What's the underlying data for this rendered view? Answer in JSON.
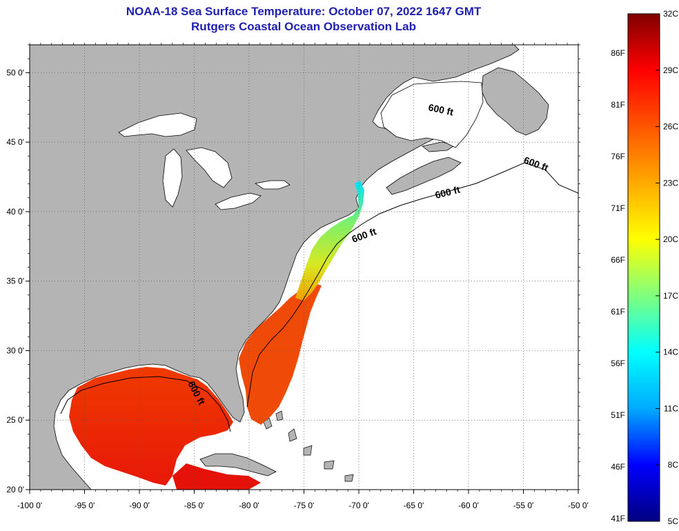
{
  "header": {
    "title": "NOAA-18 Sea Surface Temperature:  October 07, 2022 1647 GMT",
    "subtitle": "Rutgers Coastal Ocean Observation Lab"
  },
  "map": {
    "lon_range": [
      -100,
      -50
    ],
    "lat_range": [
      20,
      52
    ],
    "lon_ticks": [
      "-100 0'",
      "-95 0'",
      "-90 0'",
      "-85 0'",
      "-80 0'",
      "-75 0'",
      "-70 0'",
      "-65 0'",
      "-60 0'",
      "-55 0'",
      "-50 0'"
    ],
    "lat_ticks": [
      "20 0'",
      "25 0'",
      "30 0'",
      "35 0'",
      "40 0'",
      "45 0'",
      "50 0'"
    ],
    "contour_labels": [
      "600 ft",
      "600 ft",
      "600 ft",
      "600 ft",
      "600 ft"
    ],
    "colors": {
      "land": "#b4b4b4",
      "ocean_nodata": "#ffffff",
      "lakes": "#ffffff"
    }
  },
  "colorbar": {
    "celsius_labels": [
      "32C",
      "29C",
      "26C",
      "23C",
      "20C",
      "17C",
      "14C",
      "11C",
      "8C",
      "5C"
    ],
    "fahrenheit_labels": [
      "86F",
      "81F",
      "76F",
      "71F",
      "66F",
      "61F",
      "56F",
      "51F",
      "46F",
      "41F"
    ],
    "range_c": [
      5,
      32
    ],
    "gradient_stops": [
      "#000080",
      "#0000ff",
      "#00aaff",
      "#00ffff",
      "#7fff7f",
      "#ffff00",
      "#ffaa00",
      "#ff5500",
      "#ff0000",
      "#800000"
    ]
  }
}
